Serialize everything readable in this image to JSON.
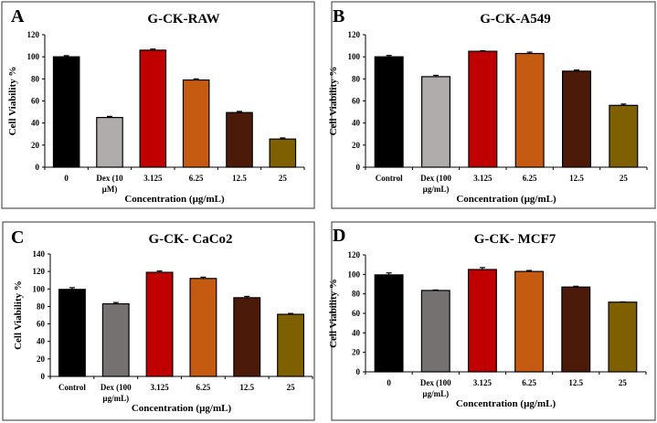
{
  "chart_data": [
    {
      "type": "bar",
      "panel_label": "A",
      "title": "G-CK-RAW",
      "xlabel": "Concentration (µg/mL)",
      "ylabel": "Cell Viability %",
      "ylim": [
        0,
        120
      ],
      "yticks": [
        0,
        20,
        40,
        60,
        80,
        100,
        120
      ],
      "categories": [
        [
          "0"
        ],
        [
          "Dex (10",
          "µM)"
        ],
        [
          "3.125"
        ],
        [
          "6.25"
        ],
        [
          "12.5"
        ],
        [
          "25"
        ]
      ],
      "values": [
        100,
        45,
        106,
        79,
        49.5,
        25.5
      ],
      "errors": [
        1,
        1,
        1,
        1,
        1,
        1
      ],
      "colors": [
        "#000000",
        "#b0acab",
        "#c00000",
        "#c55a11",
        "#4b1a09",
        "#7f6000"
      ]
    },
    {
      "type": "bar",
      "panel_label": "B",
      "title": "G-CK-A549",
      "xlabel": "Concentration (µg/mL)",
      "ylabel": "Cell Viability %",
      "ylim": [
        0,
        120
      ],
      "yticks": [
        0,
        20,
        40,
        60,
        80,
        100,
        120
      ],
      "categories": [
        [
          "Control"
        ],
        [
          "Dex (100",
          "µg/mL)"
        ],
        [
          "3.125"
        ],
        [
          "6.25"
        ],
        [
          "12.5"
        ],
        [
          "25"
        ]
      ],
      "values": [
        100,
        82,
        105,
        103,
        87,
        56
      ],
      "errors": [
        1.2,
        1.2,
        0.5,
        1.2,
        1,
        1.2
      ],
      "colors": [
        "#000000",
        "#b0acab",
        "#c00000",
        "#c55a11",
        "#4b1a09",
        "#7f6000"
      ]
    },
    {
      "type": "bar",
      "panel_label": "C",
      "title": "G-CK- CaCo2",
      "xlabel": "Concentration (µg/mL)",
      "ylabel": "Cell Viability %",
      "ylim": [
        0,
        140
      ],
      "yticks": [
        0,
        20,
        40,
        60,
        80,
        100,
        120,
        140
      ],
      "categories": [
        [
          "Control"
        ],
        [
          "Dex (100",
          "µg/mL)"
        ],
        [
          "3.125"
        ],
        [
          "6.25"
        ],
        [
          "12.5"
        ],
        [
          "25"
        ]
      ],
      "values": [
        99.5,
        83,
        119,
        112,
        90,
        71
      ],
      "errors": [
        2,
        1.5,
        1.5,
        1.5,
        1.5,
        1
      ],
      "colors": [
        "#000000",
        "#767171",
        "#c00000",
        "#c55a11",
        "#4b1a09",
        "#7f6000"
      ]
    },
    {
      "type": "bar",
      "panel_label": "D",
      "title": "G-CK- MCF7",
      "xlabel": "Concentration (µg/mL)",
      "ylabel": "Cell Viability %",
      "ylim": [
        0,
        120
      ],
      "yticks": [
        0,
        20,
        40,
        60,
        80,
        100,
        120
      ],
      "categories": [
        [
          "0"
        ],
        [
          "Dex (100",
          "µg/mL)"
        ],
        [
          "3.125"
        ],
        [
          "6.25"
        ],
        [
          "12.5"
        ],
        [
          "25"
        ]
      ],
      "values": [
        99.5,
        83.5,
        105,
        103,
        87,
        71.5
      ],
      "errors": [
        2,
        0.5,
        2,
        1,
        0.8,
        0.3
      ],
      "colors": [
        "#000000",
        "#767171",
        "#c00000",
        "#c55a11",
        "#4b1a09",
        "#7f6000"
      ]
    }
  ]
}
